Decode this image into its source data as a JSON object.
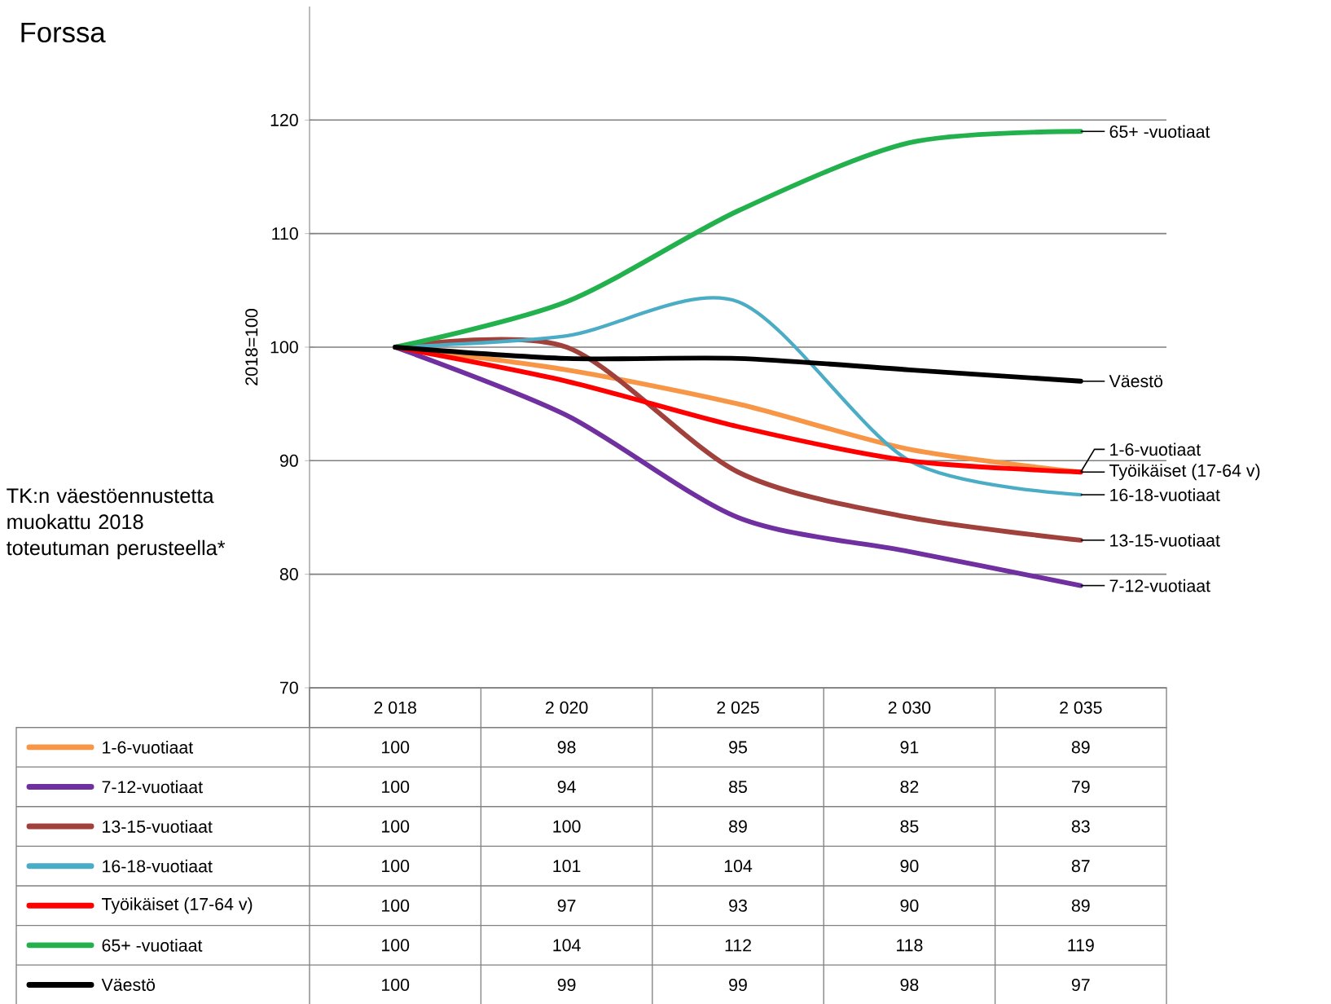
{
  "chart_data": {
    "type": "line",
    "title": "Forssa",
    "ylabel": "2018=100",
    "annotations": [
      "TK:n väestöennustetta muokattu 2018 toteutuman perusteella*"
    ],
    "categories": [
      "2 018",
      "2 020",
      "2 025",
      "2 030",
      "2 035"
    ],
    "series": [
      {
        "name": "1-6-vuotiaat",
        "color": "#f79646",
        "values": [
          100,
          98,
          95,
          91,
          89
        ]
      },
      {
        "name": "7-12-vuotiaat",
        "color": "#7030a0",
        "values": [
          100,
          94,
          85,
          82,
          79
        ]
      },
      {
        "name": "13-15-vuotiaat",
        "color": "#a0413c",
        "values": [
          100,
          100,
          89,
          85,
          83
        ]
      },
      {
        "name": "16-18-vuotiaat",
        "color": "#4bacc6",
        "values": [
          100,
          101,
          104,
          90,
          87
        ]
      },
      {
        "name": "Työikäiset (17-64 v)",
        "color": "#ff0000",
        "values": [
          100,
          97,
          93,
          90,
          89
        ]
      },
      {
        "name": "65+ -vuotiaat",
        "color": "#22b14c",
        "values": [
          100,
          104,
          112,
          118,
          119
        ]
      },
      {
        "name": "Väestö",
        "color": "#000000",
        "values": [
          100,
          99,
          99,
          98,
          97
        ]
      }
    ],
    "ylim": [
      70,
      130
    ],
    "yticks": [
      70,
      80,
      90,
      100,
      110,
      120
    ],
    "grid": "y",
    "legend": "bottom",
    "data_labels": true,
    "marker": "none",
    "line_style": "solid"
  }
}
